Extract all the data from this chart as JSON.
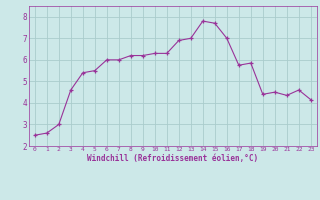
{
  "x": [
    0,
    1,
    2,
    3,
    4,
    5,
    6,
    7,
    8,
    9,
    10,
    11,
    12,
    13,
    14,
    15,
    16,
    17,
    18,
    19,
    20,
    21,
    22,
    23
  ],
  "y": [
    2.5,
    2.6,
    3.0,
    4.6,
    5.4,
    5.5,
    6.0,
    6.0,
    6.2,
    6.2,
    6.3,
    6.3,
    6.9,
    7.0,
    7.8,
    7.7,
    7.0,
    5.75,
    5.85,
    4.4,
    4.5,
    4.35,
    4.6,
    4.15
  ],
  "line_color": "#993399",
  "marker": "+",
  "marker_size": 3,
  "bg_color": "#cce8e8",
  "grid_color": "#aacccc",
  "xlabel": "Windchill (Refroidissement éolien,°C)",
  "xlabel_color": "#993399",
  "tick_color": "#993399",
  "axis_color": "#993399",
  "ylim": [
    2.0,
    8.5
  ],
  "xlim": [
    -0.5,
    23.5
  ],
  "yticks": [
    2,
    3,
    4,
    5,
    6,
    7,
    8
  ],
  "xticks": [
    0,
    1,
    2,
    3,
    4,
    5,
    6,
    7,
    8,
    9,
    10,
    11,
    12,
    13,
    14,
    15,
    16,
    17,
    18,
    19,
    20,
    21,
    22,
    23
  ],
  "fig_width": 3.2,
  "fig_height": 2.0,
  "dpi": 100
}
